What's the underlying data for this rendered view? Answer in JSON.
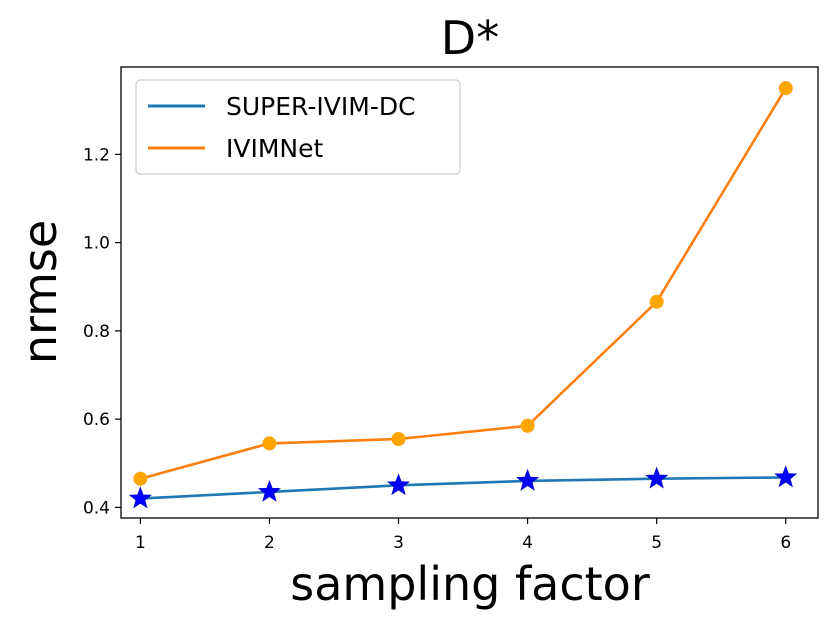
{
  "chart_data": {
    "type": "line",
    "title": "D*",
    "xlabel": "sampling factor",
    "ylabel": "nrmse",
    "x": [
      1,
      2,
      3,
      4,
      5,
      6
    ],
    "xticks": [
      "1",
      "2",
      "3",
      "4",
      "5",
      "6"
    ],
    "yticks": [
      "0.4",
      "0.6",
      "0.8",
      "1.0",
      "1.2"
    ],
    "ytick_values": [
      0.4,
      0.6,
      0.8,
      1.0,
      1.2
    ],
    "xlim": [
      0.85,
      6.25
    ],
    "ylim": [
      0.376,
      1.398
    ],
    "grid": false,
    "legend_position": "top-left",
    "series": [
      {
        "name": "SUPER-IVIM-DC",
        "values": [
          0.42,
          0.435,
          0.45,
          0.46,
          0.465,
          0.468
        ],
        "line_color": "#1f77b4",
        "marker": "star",
        "marker_color": "#0000ff"
      },
      {
        "name": "IVIMNet",
        "values": [
          0.465,
          0.545,
          0.555,
          0.585,
          0.866,
          1.35
        ],
        "line_color": "#ff7f0e",
        "marker": "circle",
        "marker_color": "#ffa500"
      }
    ]
  }
}
